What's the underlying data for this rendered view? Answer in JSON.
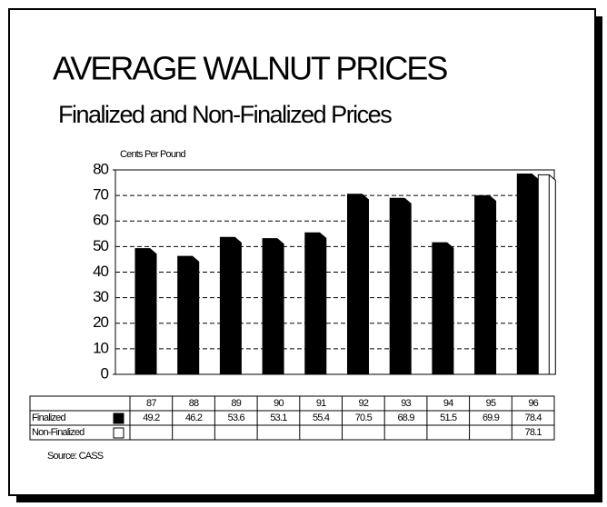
{
  "chart_data": {
    "type": "bar",
    "title": "AVERAGE WALNUT PRICES",
    "subtitle": "Finalized and Non-Finalized Prices",
    "y_label": "Cents Per Pound",
    "source": "Source: CASS",
    "categories": [
      "87",
      "88",
      "89",
      "90",
      "91",
      "92",
      "93",
      "94",
      "95",
      "96"
    ],
    "series": [
      {
        "name": "Finalized",
        "color": "#000000",
        "values": [
          49.2,
          46.2,
          53.6,
          53.1,
          55.4,
          70.5,
          68.9,
          51.5,
          69.9,
          78.4
        ]
      },
      {
        "name": "Non-Finalized",
        "color": "#ffffff",
        "values": [
          null,
          null,
          null,
          null,
          null,
          null,
          null,
          null,
          null,
          78.1
        ]
      }
    ],
    "ylim": [
      0,
      80
    ],
    "yticks": [
      0,
      10,
      20,
      30,
      40,
      50,
      60,
      70,
      80
    ],
    "grid": true
  }
}
